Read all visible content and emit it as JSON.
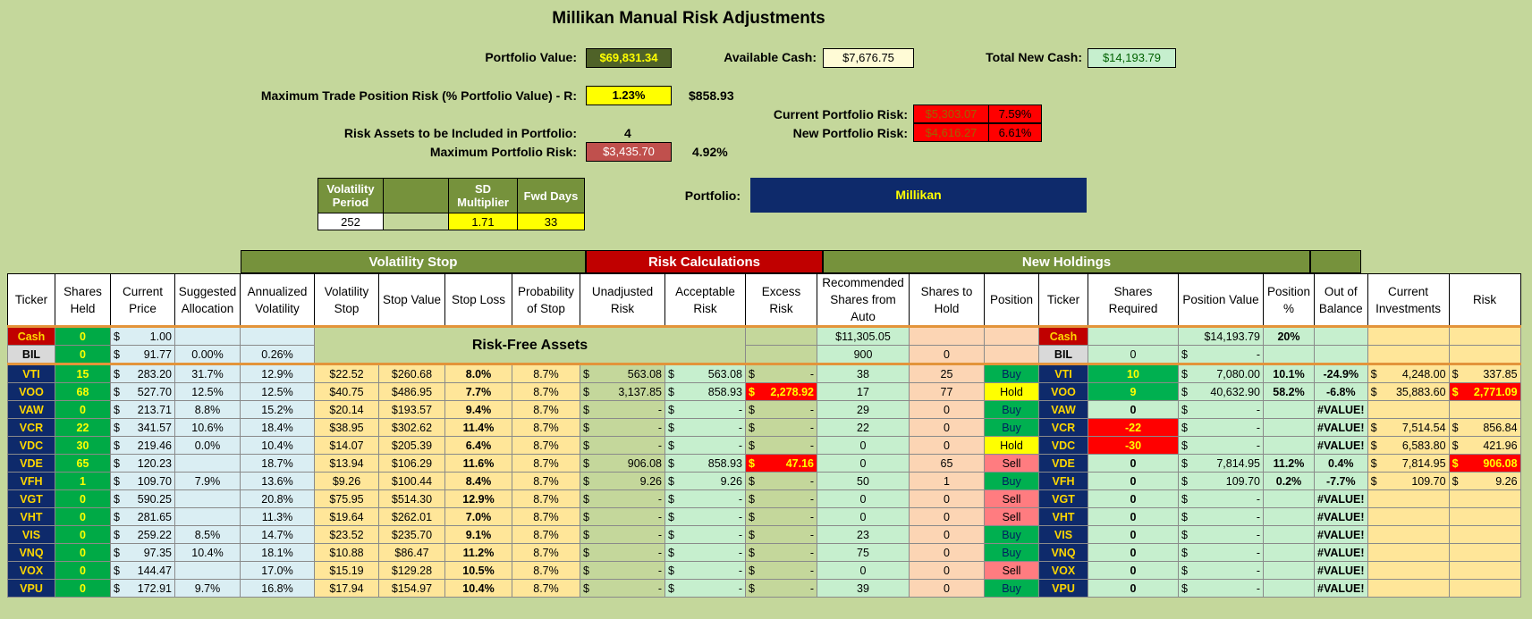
{
  "title": "Millikan Manual Risk Adjustments",
  "portfolio_value": {
    "label": "Portfolio Value:",
    "value": "$69,831.34"
  },
  "available_cash": {
    "label": "Available Cash:",
    "value": "$7,676.75"
  },
  "total_new_cash": {
    "label": "Total New Cash:",
    "value": "$14,193.79"
  },
  "max_trade_risk": {
    "label": "Maximum Trade Position Risk (% Portfolio Value) - R:",
    "value": "1.23%",
    "amount": "$858.93"
  },
  "current_portfolio_risk": {
    "label": "Current Portfolio Risk:",
    "amount": "$5,303.07",
    "pct": "7.59%"
  },
  "new_portfolio_risk": {
    "label": "New Portfolio Risk:",
    "amount": "$4,616.27",
    "pct": "6.61%"
  },
  "risk_assets": {
    "label": "Risk Assets to be Included in Portfolio:",
    "value": "4"
  },
  "max_portfolio_risk": {
    "label": "Maximum Portfolio Risk:",
    "value": "$3,435.70",
    "pct": "4.92%"
  },
  "params": {
    "headers": [
      "Volatility Period",
      "",
      "SD Multiplier",
      "Fwd Days"
    ],
    "values": [
      "252",
      "",
      "1.71",
      "33"
    ]
  },
  "portfolio": {
    "label": "Portfolio:",
    "value": "Millikan"
  },
  "sections": {
    "volatility_stop": "Volatility Stop",
    "risk_calculations": "Risk Calculations",
    "new_holdings": "New Holdings"
  },
  "columns": [
    "Ticker",
    "Shares Held",
    "Current Price",
    "Suggested Allocation",
    "Annualized Volatility",
    "Volatility Stop",
    "Stop Value",
    "Stop Loss",
    "Probability of Stop",
    "Unadjusted Risk",
    "Acceptable Risk",
    "Excess Risk",
    "Recommended Shares from Auto",
    "Shares to Hold",
    "Position",
    "Ticker",
    "Shares Required",
    "Position Value",
    "Position %",
    "Out of Balance",
    "Current Investments",
    "Risk"
  ],
  "risk_free_label": "Risk-Free Assets",
  "cash_row": {
    "ticker": "Cash",
    "shares": "0",
    "price": "1.00",
    "rec": "$11,305.05",
    "ticker2": "Cash",
    "pos_value": "$14,193.79",
    "pos_pct": "20%"
  },
  "bil_row": {
    "ticker": "BIL",
    "shares": "0",
    "price": "91.77",
    "alloc": "0.00%",
    "vol": "0.26%",
    "rec": "900",
    "hold": "0",
    "ticker2": "BIL",
    "req": "0",
    "pos_value": "-"
  },
  "rows": [
    {
      "ticker": "VTI",
      "shares": "15",
      "price": "283.20",
      "alloc": "31.7%",
      "vol": "12.9%",
      "vstop": "$22.52",
      "svalue": "$260.68",
      "sloss": "8.0%",
      "prob": "8.7%",
      "unadj": "563.08",
      "accept": "563.08",
      "excess": "-",
      "rec": "38",
      "hold": "25",
      "pos": "Buy",
      "req": "10",
      "pvalue": "7,080.00",
      "ppct": "10.1%",
      "oob": "-24.9%",
      "curinv": "4,248.00",
      "risk": "337.85"
    },
    {
      "ticker": "VOO",
      "shares": "68",
      "price": "527.70",
      "alloc": "12.5%",
      "vol": "12.5%",
      "vstop": "$40.75",
      "svalue": "$486.95",
      "sloss": "7.7%",
      "prob": "8.7%",
      "unadj": "3,137.85",
      "accept": "858.93",
      "excess": "2,278.92",
      "rec": "17",
      "hold": "77",
      "pos": "Hold",
      "req": "9",
      "pvalue": "40,632.90",
      "ppct": "58.2%",
      "oob": "-6.8%",
      "curinv": "35,883.60",
      "risk": "2,771.09"
    },
    {
      "ticker": "VAW",
      "shares": "0",
      "price": "213.71",
      "alloc": "8.8%",
      "vol": "15.2%",
      "vstop": "$20.14",
      "svalue": "$193.57",
      "sloss": "9.4%",
      "prob": "8.7%",
      "unadj": "-",
      "accept": "-",
      "excess": "-",
      "rec": "29",
      "hold": "0",
      "pos": "Buy",
      "req": "0",
      "pvalue": "-",
      "ppct": "",
      "oob": "#VALUE!",
      "curinv": "",
      "risk": ""
    },
    {
      "ticker": "VCR",
      "shares": "22",
      "price": "341.57",
      "alloc": "10.6%",
      "vol": "18.4%",
      "vstop": "$38.95",
      "svalue": "$302.62",
      "sloss": "11.4%",
      "prob": "8.7%",
      "unadj": "-",
      "accept": "-",
      "excess": "-",
      "rec": "22",
      "hold": "0",
      "pos": "Buy",
      "req": "-22",
      "pvalue": "-",
      "ppct": "",
      "oob": "#VALUE!",
      "curinv": "7,514.54",
      "risk": "856.84"
    },
    {
      "ticker": "VDC",
      "shares": "30",
      "price": "219.46",
      "alloc": "0.0%",
      "vol": "10.4%",
      "vstop": "$14.07",
      "svalue": "$205.39",
      "sloss": "6.4%",
      "prob": "8.7%",
      "unadj": "-",
      "accept": "-",
      "excess": "-",
      "rec": "0",
      "hold": "0",
      "pos": "Hold",
      "req": "-30",
      "pvalue": "-",
      "ppct": "",
      "oob": "#VALUE!",
      "curinv": "6,583.80",
      "risk": "421.96"
    },
    {
      "ticker": "VDE",
      "shares": "65",
      "price": "120.23",
      "alloc": "",
      "vol": "18.7%",
      "vstop": "$13.94",
      "svalue": "$106.29",
      "sloss": "11.6%",
      "prob": "8.7%",
      "unadj": "906.08",
      "accept": "858.93",
      "excess": "47.16",
      "rec": "0",
      "hold": "65",
      "pos": "Sell",
      "req": "0",
      "pvalue": "7,814.95",
      "ppct": "11.2%",
      "oob": "0.4%",
      "curinv": "7,814.95",
      "risk": "906.08"
    },
    {
      "ticker": "VFH",
      "shares": "1",
      "price": "109.70",
      "alloc": "7.9%",
      "vol": "13.6%",
      "vstop": "$9.26",
      "svalue": "$100.44",
      "sloss": "8.4%",
      "prob": "8.7%",
      "unadj": "9.26",
      "accept": "9.26",
      "excess": "-",
      "rec": "50",
      "hold": "1",
      "pos": "Buy",
      "req": "0",
      "pvalue": "109.70",
      "ppct": "0.2%",
      "oob": "-7.7%",
      "curinv": "109.70",
      "risk": "9.26"
    },
    {
      "ticker": "VGT",
      "shares": "0",
      "price": "590.25",
      "alloc": "",
      "vol": "20.8%",
      "vstop": "$75.95",
      "svalue": "$514.30",
      "sloss": "12.9%",
      "prob": "8.7%",
      "unadj": "-",
      "accept": "-",
      "excess": "-",
      "rec": "0",
      "hold": "0",
      "pos": "Sell",
      "req": "0",
      "pvalue": "-",
      "ppct": "",
      "oob": "#VALUE!",
      "curinv": "",
      "risk": ""
    },
    {
      "ticker": "VHT",
      "shares": "0",
      "price": "281.65",
      "alloc": "",
      "vol": "11.3%",
      "vstop": "$19.64",
      "svalue": "$262.01",
      "sloss": "7.0%",
      "prob": "8.7%",
      "unadj": "-",
      "accept": "-",
      "excess": "-",
      "rec": "0",
      "hold": "0",
      "pos": "Sell",
      "req": "0",
      "pvalue": "-",
      "ppct": "",
      "oob": "#VALUE!",
      "curinv": "",
      "risk": ""
    },
    {
      "ticker": "VIS",
      "shares": "0",
      "price": "259.22",
      "alloc": "8.5%",
      "vol": "14.7%",
      "vstop": "$23.52",
      "svalue": "$235.70",
      "sloss": "9.1%",
      "prob": "8.7%",
      "unadj": "-",
      "accept": "-",
      "excess": "-",
      "rec": "23",
      "hold": "0",
      "pos": "Buy",
      "req": "0",
      "pvalue": "-",
      "ppct": "",
      "oob": "#VALUE!",
      "curinv": "",
      "risk": ""
    },
    {
      "ticker": "VNQ",
      "shares": "0",
      "price": "97.35",
      "alloc": "10.4%",
      "vol": "18.1%",
      "vstop": "$10.88",
      "svalue": "$86.47",
      "sloss": "11.2%",
      "prob": "8.7%",
      "unadj": "-",
      "accept": "-",
      "excess": "-",
      "rec": "75",
      "hold": "0",
      "pos": "Buy",
      "req": "0",
      "pvalue": "-",
      "ppct": "",
      "oob": "#VALUE!",
      "curinv": "",
      "risk": ""
    },
    {
      "ticker": "VOX",
      "shares": "0",
      "price": "144.47",
      "alloc": "",
      "vol": "17.0%",
      "vstop": "$15.19",
      "svalue": "$129.28",
      "sloss": "10.5%",
      "prob": "8.7%",
      "unadj": "-",
      "accept": "-",
      "excess": "-",
      "rec": "0",
      "hold": "0",
      "pos": "Sell",
      "req": "0",
      "pvalue": "-",
      "ppct": "",
      "oob": "#VALUE!",
      "curinv": "",
      "risk": ""
    },
    {
      "ticker": "VPU",
      "shares": "0",
      "price": "172.91",
      "alloc": "9.7%",
      "vol": "16.8%",
      "vstop": "$17.94",
      "svalue": "$154.97",
      "sloss": "10.4%",
      "prob": "8.7%",
      "unadj": "-",
      "accept": "-",
      "excess": "-",
      "rec": "39",
      "hold": "0",
      "pos": "Buy",
      "req": "0",
      "pvalue": "-",
      "ppct": "",
      "oob": "#VALUE!",
      "curinv": "",
      "risk": ""
    }
  ],
  "colors": {
    "background": "#c4d79b",
    "ticker_bg": "#0e2a6b",
    "ticker_fg": "#ffd700",
    "olive": "#76923c",
    "risk_red": "#c00000",
    "portfolio_navy": "#0e2a6b"
  }
}
